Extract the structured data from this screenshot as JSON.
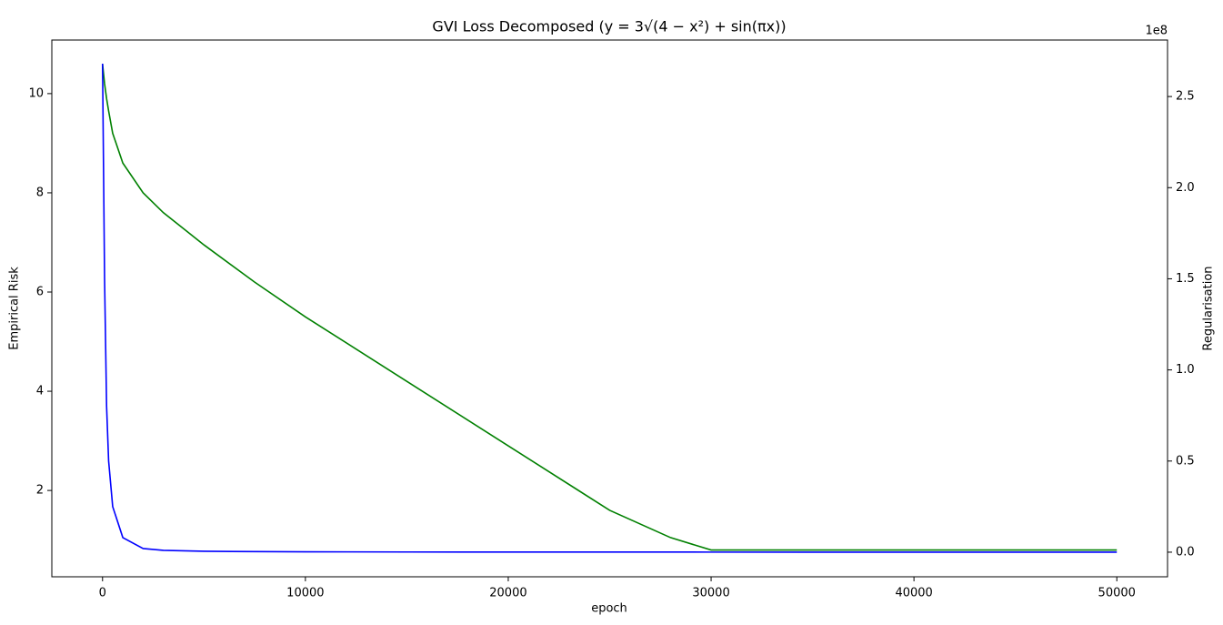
{
  "chart_data": {
    "type": "line",
    "title": "GVI Loss Decomposed (y = 3√(4 − x²) + sin(πx))",
    "xlabel": "epoch",
    "ylabel": "Empirical Risk",
    "y2label": "Regularisation",
    "y2_offset_label": "1e8",
    "x": [
      0,
      100,
      200,
      300,
      500,
      1000,
      2000,
      3000,
      5000,
      7500,
      10000,
      15000,
      20000,
      25000,
      28000,
      30000,
      35000,
      40000,
      45000,
      50000
    ],
    "series": [
      {
        "name": "Empirical Risk",
        "color": "#008000",
        "axis": "y",
        "values": [
          10.6,
          10.2,
          9.9,
          9.65,
          9.2,
          8.6,
          8.0,
          7.6,
          6.95,
          6.2,
          5.5,
          4.2,
          2.9,
          1.6,
          1.05,
          0.8,
          0.8,
          0.8,
          0.8,
          0.8
        ]
      },
      {
        "name": "Regularisation",
        "color": "#0000ff",
        "axis": "y2",
        "values": [
          268000000,
          150000000,
          80000000,
          50000000,
          25000000,
          8000000,
          2000000,
          1000000,
          500000,
          300000,
          200000,
          100000,
          80000,
          60000,
          50000,
          40000,
          30000,
          20000,
          10000,
          0
        ]
      }
    ],
    "xlim": [
      -2500,
      52500
    ],
    "xticks": [
      0,
      10000,
      20000,
      30000,
      40000,
      50000
    ],
    "ylim": [
      0.26,
      11.08
    ],
    "yticks": [
      2,
      4,
      6,
      8,
      10
    ],
    "y2lim": [
      -13500000,
      281000000
    ],
    "y2ticks": [
      {
        "value": 0,
        "label": "0.0"
      },
      {
        "value": 50000000,
        "label": "0.5"
      },
      {
        "value": 100000000,
        "label": "1.0"
      },
      {
        "value": 150000000,
        "label": "1.5"
      },
      {
        "value": 200000000,
        "label": "2.0"
      },
      {
        "value": 250000000,
        "label": "2.5"
      }
    ],
    "grid": false
  }
}
